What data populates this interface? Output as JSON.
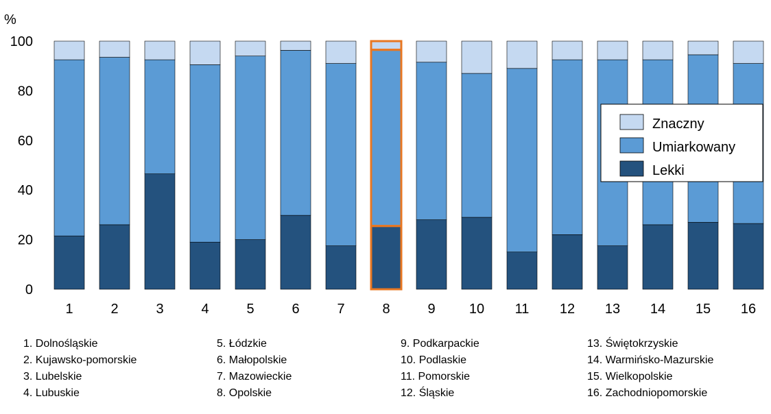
{
  "chart_data": {
    "type": "bar",
    "stacked": true,
    "ylabel": "%",
    "ylim": [
      0,
      100
    ],
    "yticks": [
      0,
      20,
      40,
      60,
      80,
      100
    ],
    "categories": [
      "1",
      "2",
      "3",
      "4",
      "5",
      "6",
      "7",
      "8",
      "9",
      "10",
      "11",
      "12",
      "13",
      "14",
      "15",
      "16"
    ],
    "series": [
      {
        "name": "Lekki",
        "color": "#24527e",
        "values": [
          21.5,
          26,
          46.5,
          19,
          20,
          29.8,
          17.5,
          25.5,
          28,
          29,
          15,
          22,
          17.5,
          26,
          27,
          26.5
        ]
      },
      {
        "name": "Umiarkowany",
        "color": "#5b9bd5",
        "values": [
          71,
          67.5,
          46,
          71.5,
          74,
          66.5,
          73.5,
          71,
          63.5,
          58,
          74,
          70.5,
          75,
          66.5,
          67.5,
          64.5
        ]
      },
      {
        "name": "Znaczny",
        "color": "#c5d9f1",
        "values": [
          7.5,
          6.5,
          7.5,
          9.5,
          6,
          3.7,
          9,
          3.5,
          8.5,
          13,
          11,
          7.5,
          7.5,
          7.5,
          5.5,
          9
        ]
      }
    ],
    "highlighted_category": "8",
    "highlight_color": "#e87722",
    "legend_position": "right",
    "grid": false
  },
  "legend_labels": [
    "Znaczny",
    "Umiarkowany",
    "Lekki"
  ],
  "notes": {
    "col1": [
      "1. Dolnośląskie",
      "2. Kujawsko-pomorskie",
      "3. Lubelskie",
      "4. Lubuskie"
    ],
    "col2": [
      "5. Łódzkie",
      "6. Małopolskie",
      "7. Mazowieckie",
      "8. Opolskie"
    ],
    "col3": [
      "9. Podkarpackie",
      "10. Podlaskie",
      "11. Pomorskie",
      "12. Śląskie"
    ],
    "col4": [
      "13. Świętokrzyskie",
      "14. Warmińsko-Mazurskie",
      "15. Wielkopolskie",
      "16. Zachodniopomorskie"
    ]
  }
}
